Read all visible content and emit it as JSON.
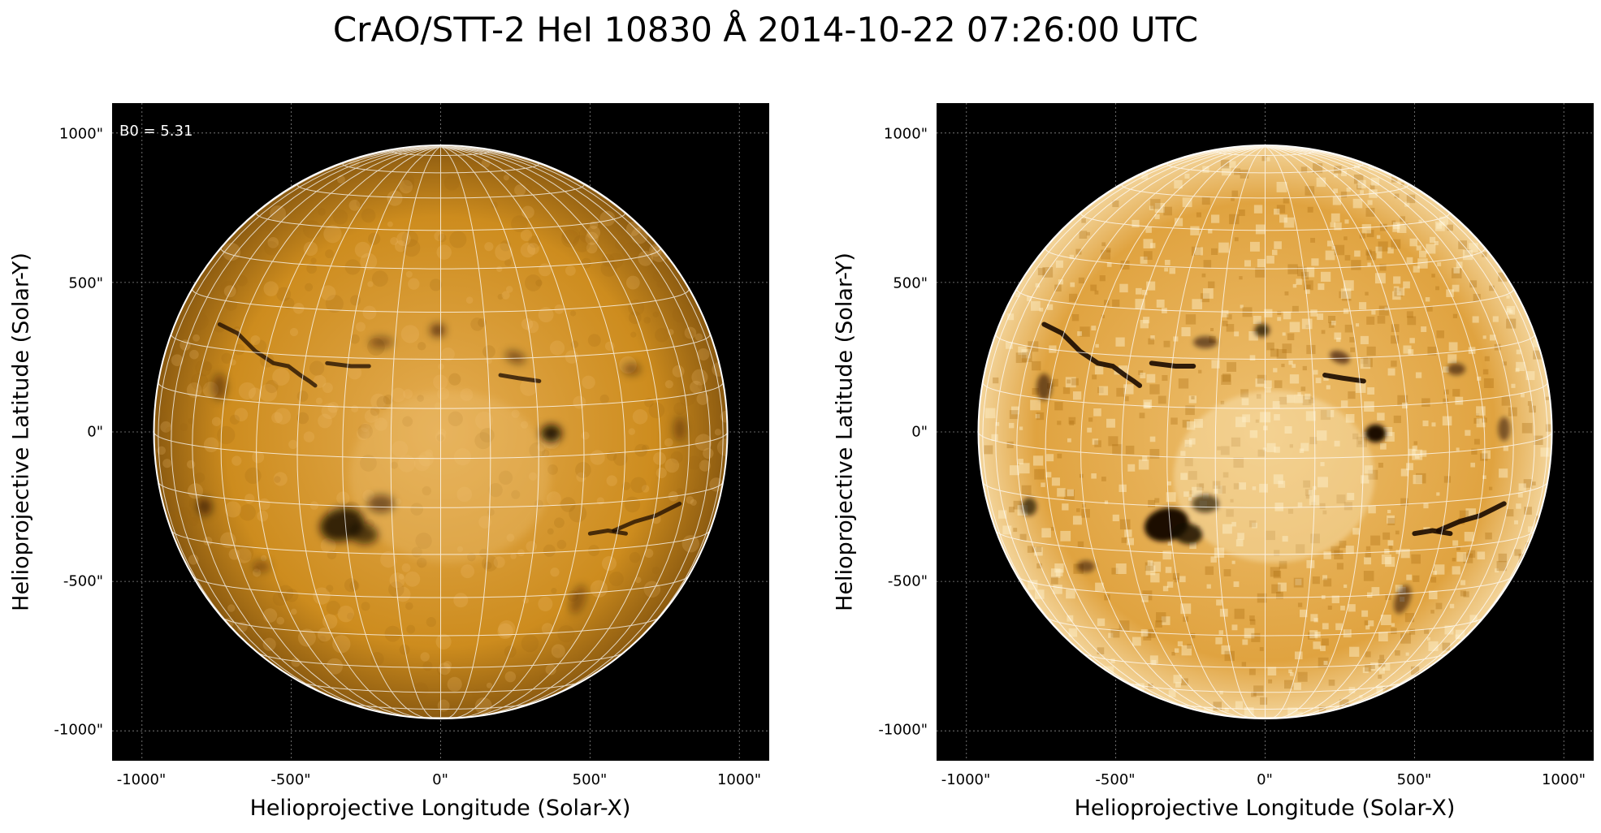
{
  "figure": {
    "title": "CrAO/STT-2 HeI 10830 Å 2014-10-22 07:26:00 UTC"
  },
  "panels": [
    {
      "id": "left",
      "annotation": "B0 = 5.31",
      "xlabel": "Helioprojective Longitude (Solar-X)",
      "ylabel": "Helioprojective Latitude (Solar-Y)",
      "xticks": [
        "-1000\"",
        "-500\"",
        "0\"",
        "500\"",
        "1000\""
      ],
      "yticks": [
        "1000\"",
        "500\"",
        "0\"",
        "-500\"",
        "-1000\""
      ]
    },
    {
      "id": "right",
      "annotation": "",
      "xlabel": "Helioprojective Longitude (Solar-X)",
      "ylabel": "Helioprojective Latitude (Solar-Y)",
      "xticks": [
        "-1000\"",
        "-500\"",
        "0\"",
        "500\"",
        "1000\""
      ],
      "yticks": [
        "1000\"",
        "500\"",
        "0\"",
        "-500\"",
        "-1000\""
      ]
    }
  ],
  "image": {
    "colormap": "orange / solar HeI",
    "background_color": "#000000",
    "disk_color": "#d69318",
    "grid_color": "#ffffff"
  },
  "axes": {
    "xlim": [
      -1100,
      1100
    ],
    "ylim": [
      -1100,
      1100
    ],
    "tick_values": [
      -1000,
      -500,
      0,
      500,
      1000
    ],
    "solar_radius_arcsec": 960
  }
}
